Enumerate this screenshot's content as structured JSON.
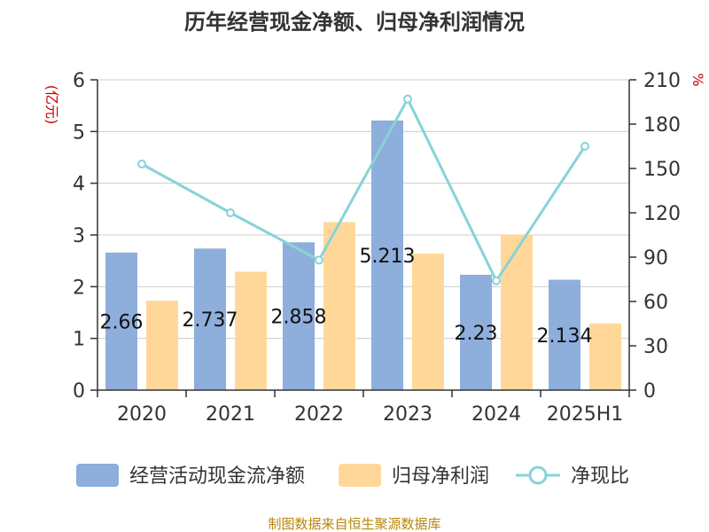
{
  "chart_title": "历年经营现金净额、归母净利润情况",
  "left_unit": "(亿元)",
  "right_unit": "%",
  "source": "制图数据来自恒生聚源数据库",
  "colors": {
    "cash_flow": "#8eaedb",
    "net_profit": "#ffd899",
    "ratio": "#86d3d8",
    "grid": "#cccccc",
    "axis": "#333333"
  },
  "chart_data": {
    "type": "bar",
    "categories": [
      "2020",
      "2021",
      "2022",
      "2023",
      "2024",
      "2025H1"
    ],
    "series": [
      {
        "name": "经营活动现金流净额",
        "type": "bar",
        "axis": "left",
        "values": [
          2.66,
          2.737,
          2.858,
          5.213,
          2.23,
          2.134
        ],
        "data_labels": [
          "2.66",
          "2.737",
          "2.858",
          "5.213",
          "2.23",
          "2.134"
        ]
      },
      {
        "name": "归母净利润",
        "type": "bar",
        "axis": "left",
        "values": [
          1.73,
          2.29,
          3.25,
          2.64,
          3.01,
          1.29
        ]
      },
      {
        "name": "净现比",
        "type": "line",
        "axis": "right",
        "values": [
          153,
          120,
          88,
          197,
          74,
          165
        ]
      }
    ],
    "y_left": {
      "min": 0,
      "max": 6,
      "ticks": [
        "0",
        "1",
        "2",
        "3",
        "4",
        "5",
        "6"
      ]
    },
    "y_right": {
      "min": 0,
      "max": 210,
      "ticks": [
        "0",
        "30",
        "60",
        "90",
        "120",
        "150",
        "180",
        "210"
      ]
    },
    "grid": true,
    "legend_position": "bottom"
  }
}
